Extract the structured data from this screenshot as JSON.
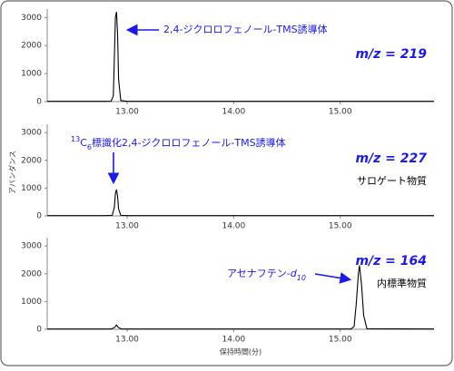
{
  "chart_data": [
    {
      "type": "line",
      "xlim": [
        12.25,
        15.88
      ],
      "ylim": [
        0,
        3300
      ],
      "xticks": [
        {
          "value": 13,
          "label": "13.00"
        },
        {
          "value": 14,
          "label": "14.00"
        },
        {
          "value": 15,
          "label": "15.00"
        }
      ],
      "yticks": [
        0,
        1000,
        2000,
        3000
      ],
      "x": [
        12.25,
        12.8,
        12.85,
        12.87,
        12.88,
        12.89,
        12.9,
        12.91,
        12.92,
        12.94,
        13.0,
        15.88
      ],
      "series": [
        {
          "color": "#000000",
          "values": [
            10,
            10,
            15,
            200,
            1500,
            3000,
            3200,
            2400,
            800,
            40,
            10,
            10
          ]
        }
      ],
      "compound": [
        {
          "text": "2,4-ジクロロフェノール-TMS誘導体"
        }
      ],
      "mz": "m/z = 219",
      "color": "#1a1aee"
    },
    {
      "type": "line",
      "xlim": [
        12.25,
        15.88
      ],
      "ylim": [
        0,
        3300
      ],
      "xticks": [
        {
          "value": 13,
          "label": "13.00"
        },
        {
          "value": 14,
          "label": "14.00"
        },
        {
          "value": 15,
          "label": "15.00"
        }
      ],
      "yticks": [
        0,
        1000,
        2000,
        3000
      ],
      "x": [
        12.25,
        12.8,
        12.86,
        12.88,
        12.89,
        12.9,
        12.91,
        12.92,
        12.94,
        13.0,
        15.88
      ],
      "series": [
        {
          "color": "#000000",
          "values": [
            10,
            10,
            20,
            300,
            800,
            950,
            700,
            250,
            20,
            10,
            10
          ]
        }
      ],
      "compound": [
        {
          "text": "13",
          "shift": "super"
        },
        {
          "text": "C"
        },
        {
          "text": "6",
          "shift": "sub"
        },
        {
          "text": "標識化2,4-ジクロロフェノール-TMS誘導体"
        }
      ],
      "mz": "m/z = 227",
      "note": "サロゲート物質",
      "color": "#1a1aee",
      "ylabel": "アバンダンス"
    },
    {
      "type": "line",
      "xlim": [
        12.25,
        15.88
      ],
      "ylim": [
        0,
        3300
      ],
      "xticks": [
        {
          "value": 13,
          "label": "13.00"
        },
        {
          "value": 14,
          "label": "14.00"
        },
        {
          "value": 15,
          "label": "15.00"
        }
      ],
      "yticks": [
        0,
        1000,
        2000,
        3000
      ],
      "x": [
        12.25,
        12.85,
        12.88,
        12.9,
        12.92,
        12.95,
        15.1,
        15.13,
        15.15,
        15.17,
        15.18,
        15.2,
        15.22,
        15.25,
        15.88
      ],
      "series": [
        {
          "color": "#000000",
          "values": [
            10,
            10,
            60,
            150,
            60,
            10,
            10,
            100,
            900,
            2000,
            2300,
            1600,
            500,
            20,
            10
          ]
        }
      ],
      "compound": [
        {
          "text": "アセナフテン-"
        },
        {
          "text": "d",
          "style": "italic"
        },
        {
          "text": "10",
          "style": "italic",
          "shift": "sub"
        }
      ],
      "mz": "m/z = 164",
      "note": "内標準物質",
      "color": "#1a1aee",
      "xlabel": "保持時間(分)"
    }
  ]
}
